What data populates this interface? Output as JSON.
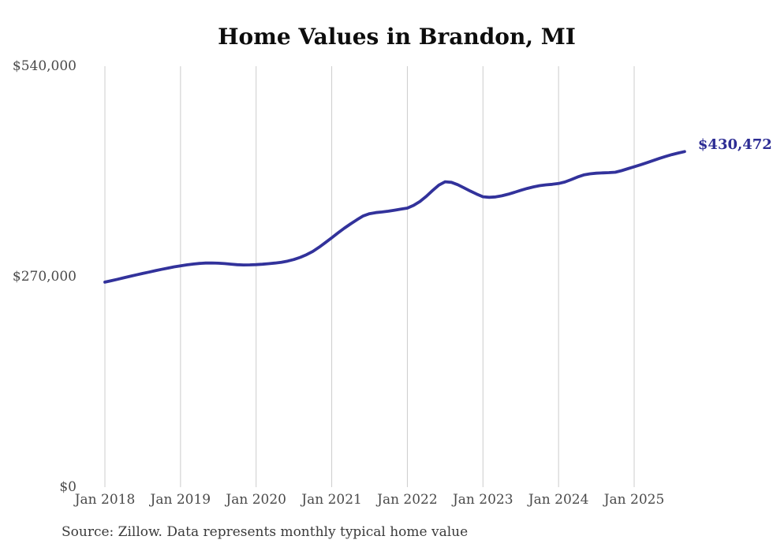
{
  "chart_data": {
    "type": "line",
    "title": "Home Values in Brandon, MI",
    "source": "Source: Zillow. Data represents monthly typical home value",
    "series_name": "Monthly typical home value",
    "unit": "USD",
    "end_label": "$430,472",
    "latest_value": 430472,
    "ylim": [
      0,
      540000
    ],
    "colors": {
      "line": "#32329b",
      "end_label": "#2c2c94",
      "grid": "#cccccc",
      "axis_text": "#4a4a4a",
      "title_text": "#0d0d0d"
    },
    "y_ticks": [
      {
        "label": "$540,000",
        "value": 540000
      },
      {
        "label": "$270,000",
        "value": 270000
      },
      {
        "label": "$0",
        "value": 0
      }
    ],
    "x_ticks": [
      {
        "label": "Jan 2018",
        "month_index": 0
      },
      {
        "label": "Jan 2019",
        "month_index": 12
      },
      {
        "label": "Jan 2020",
        "month_index": 24
      },
      {
        "label": "Jan 2021",
        "month_index": 36
      },
      {
        "label": "Jan 2022",
        "month_index": 48
      },
      {
        "label": "Jan 2023",
        "month_index": 60
      },
      {
        "label": "Jan 2024",
        "month_index": 72
      },
      {
        "label": "Jan 2025",
        "month_index": 84
      }
    ],
    "x": [
      "2018-01",
      "2018-02",
      "2018-03",
      "2018-04",
      "2018-05",
      "2018-06",
      "2018-07",
      "2018-08",
      "2018-09",
      "2018-10",
      "2018-11",
      "2018-12",
      "2019-01",
      "2019-02",
      "2019-03",
      "2019-04",
      "2019-05",
      "2019-06",
      "2019-07",
      "2019-08",
      "2019-09",
      "2019-10",
      "2019-11",
      "2019-12",
      "2020-01",
      "2020-02",
      "2020-03",
      "2020-04",
      "2020-05",
      "2020-06",
      "2020-07",
      "2020-08",
      "2020-09",
      "2020-10",
      "2020-11",
      "2020-12",
      "2021-01",
      "2021-02",
      "2021-03",
      "2021-04",
      "2021-05",
      "2021-06",
      "2021-07",
      "2021-08",
      "2021-09",
      "2021-10",
      "2021-11",
      "2021-12",
      "2022-01",
      "2022-02",
      "2022-03",
      "2022-04",
      "2022-05",
      "2022-06",
      "2022-07",
      "2022-08",
      "2022-09",
      "2022-10",
      "2022-11",
      "2022-12",
      "2023-01",
      "2023-02",
      "2023-03",
      "2023-04",
      "2023-05",
      "2023-06",
      "2023-07",
      "2023-08",
      "2023-09",
      "2023-10",
      "2023-11",
      "2023-12",
      "2024-01",
      "2024-02",
      "2024-03",
      "2024-04",
      "2024-05",
      "2024-06",
      "2024-07",
      "2024-08",
      "2024-09",
      "2024-10",
      "2024-11",
      "2024-12",
      "2025-01",
      "2025-02",
      "2025-03",
      "2025-04",
      "2025-05",
      "2025-06",
      "2025-07",
      "2025-08",
      "2025-09"
    ],
    "values": [
      263000,
      264800,
      266700,
      268600,
      270500,
      272300,
      274100,
      275900,
      277700,
      279400,
      281000,
      282600,
      284000,
      285200,
      286200,
      287000,
      287500,
      287600,
      287300,
      286800,
      286100,
      285400,
      285100,
      285200,
      285500,
      286000,
      286700,
      287500,
      288500,
      290000,
      292000,
      294800,
      298200,
      302500,
      307800,
      313800,
      320000,
      326200,
      332200,
      337800,
      343000,
      348000,
      350800,
      352200,
      353000,
      354000,
      355300,
      356700,
      358000,
      361500,
      366500,
      373000,
      380500,
      387500,
      391800,
      391000,
      388000,
      384000,
      379800,
      376000,
      372500,
      371800,
      372300,
      373800,
      375800,
      378200,
      380800,
      383200,
      385200,
      386800,
      387800,
      388500,
      389500,
      391500,
      394500,
      397800,
      400500,
      402000,
      402800,
      403200,
      403500,
      404000,
      406000,
      408500,
      411000,
      413500,
      416200,
      419000,
      421800,
      424300,
      426600,
      428700,
      430472
    ]
  }
}
